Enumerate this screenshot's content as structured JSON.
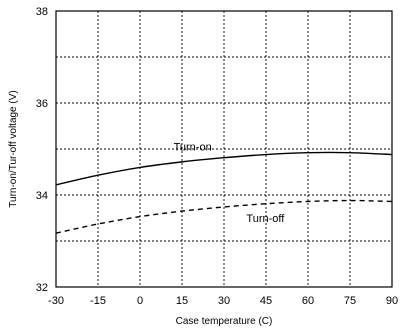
{
  "chart_data": {
    "type": "line",
    "xlabel": "Case temperature (C)",
    "ylabel": "Turn-on/Tur-off voltage (V)",
    "xlim": [
      -30,
      90
    ],
    "ylim": [
      32,
      38
    ],
    "x_ticks": [
      -30,
      -15,
      0,
      15,
      30,
      45,
      60,
      75,
      90
    ],
    "y_ticks": [
      32,
      34,
      36,
      38
    ],
    "grid": true,
    "grid_style": "dotted",
    "series": [
      {
        "name": "Turn-on",
        "line_style": "solid",
        "color": "#000000",
        "x": [
          -30,
          -15,
          0,
          15,
          30,
          45,
          60,
          75,
          90
        ],
        "y": [
          34.22,
          34.43,
          34.6,
          34.72,
          34.81,
          34.88,
          34.92,
          34.92,
          34.88
        ]
      },
      {
        "name": "Turn-off",
        "line_style": "dashed",
        "color": "#000000",
        "x": [
          -30,
          -15,
          0,
          15,
          30,
          45,
          60,
          75,
          90
        ],
        "y": [
          33.17,
          33.37,
          33.53,
          33.65,
          33.74,
          33.81,
          33.86,
          33.88,
          33.86
        ]
      }
    ],
    "annotations": [
      {
        "text": "Turn-on",
        "x": 12,
        "y": 35.05
      },
      {
        "text": "Turn-off",
        "x": 38,
        "y": 33.5
      }
    ]
  }
}
